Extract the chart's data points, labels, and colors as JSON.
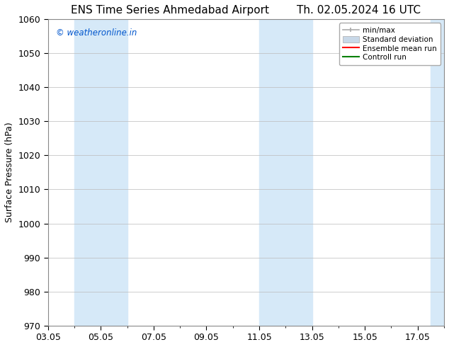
{
  "title_left": "ENS Time Series Ahmedabad Airport",
  "title_right": "Th. 02.05.2024 16 UTC",
  "ylabel": "Surface Pressure (hPa)",
  "ylim": [
    970,
    1060
  ],
  "yticks": [
    970,
    980,
    990,
    1000,
    1010,
    1020,
    1030,
    1040,
    1050,
    1060
  ],
  "xlim_start": 3.0,
  "xlim_end": 18.0,
  "xtick_labels": [
    "03.05",
    "05.05",
    "07.05",
    "09.05",
    "11.05",
    "13.05",
    "15.05",
    "17.05"
  ],
  "xtick_positions": [
    3,
    5,
    7,
    9,
    11,
    13,
    15,
    17
  ],
  "shaded_bands": [
    {
      "x_start": 4.0,
      "x_end": 6.0
    },
    {
      "x_start": 11.0,
      "x_end": 13.0
    },
    {
      "x_start": 17.5,
      "x_end": 18.1
    }
  ],
  "shaded_color": "#d6e9f8",
  "watermark_text": "© weatheronline.in",
  "watermark_color": "#0055cc",
  "legend_labels": [
    "min/max",
    "Standard deviation",
    "Ensemble mean run",
    "Controll run"
  ],
  "bg_color": "#ffffff",
  "grid_color": "#bbbbbb",
  "title_fontsize": 11,
  "axis_label_fontsize": 9,
  "tick_fontsize": 9,
  "spine_color": "#888888"
}
